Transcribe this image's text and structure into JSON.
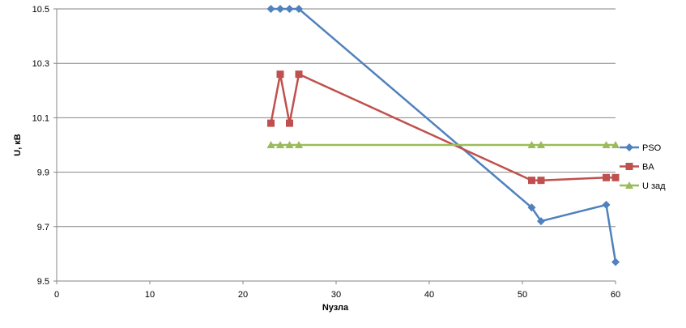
{
  "chart_data": {
    "type": "line",
    "title": "",
    "xlabel": "Nузла",
    "ylabel": "U, кВ",
    "xlim": [
      0,
      60
    ],
    "ylim": [
      9.5,
      10.5
    ],
    "xticks": [
      "0",
      "10",
      "20",
      "30",
      "40",
      "50",
      "60"
    ],
    "yticks": [
      "9.5",
      "9.7",
      "9.9",
      "10.1",
      "10.3",
      "10.5"
    ],
    "grid": "horizontal",
    "legend": "right",
    "series": [
      {
        "name": "PSO",
        "color": "#4f81bd",
        "marker": "diamond",
        "points": [
          [
            23,
            10.5
          ],
          [
            24,
            10.5
          ],
          [
            25,
            10.5
          ],
          [
            26,
            10.5
          ],
          [
            51,
            9.77
          ],
          [
            52,
            9.72
          ],
          [
            59,
            9.78
          ],
          [
            60,
            9.57
          ]
        ]
      },
      {
        "name": "BA",
        "color": "#c0504d",
        "marker": "square",
        "points": [
          [
            23,
            10.08
          ],
          [
            24,
            10.26
          ],
          [
            25,
            10.08
          ],
          [
            26,
            10.26
          ],
          [
            51,
            9.87
          ],
          [
            52,
            9.87
          ],
          [
            59,
            9.88
          ],
          [
            60,
            9.88
          ]
        ]
      },
      {
        "name": "U зад",
        "color": "#9bbb59",
        "marker": "triangle",
        "points": [
          [
            23,
            10.0
          ],
          [
            24,
            10.0
          ],
          [
            25,
            10.0
          ],
          [
            26,
            10.0
          ],
          [
            51,
            10.0
          ],
          [
            52,
            10.0
          ],
          [
            59,
            10.0
          ],
          [
            60,
            10.0
          ]
        ]
      }
    ]
  }
}
